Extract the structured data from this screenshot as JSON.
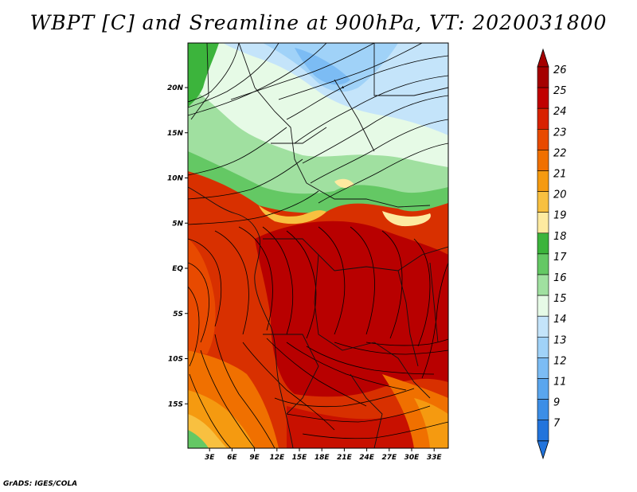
{
  "title": "WBPT [C] and Sreamline at 900hPa, VT: 2020031800",
  "credit": "GrADS: IGES/COLA",
  "map": {
    "lat_labels": [
      {
        "lat": 20,
        "label": "20N"
      },
      {
        "lat": 15,
        "label": "15N"
      },
      {
        "lat": 10,
        "label": "10N"
      },
      {
        "lat": 5,
        "label": "5N"
      },
      {
        "lat": 0,
        "label": "EQ"
      },
      {
        "lat": -5,
        "label": "5S"
      },
      {
        "lat": -10,
        "label": "10S"
      },
      {
        "lat": -15,
        "label": "15S"
      }
    ],
    "lon_labels": [
      {
        "lon": 3,
        "label": "3E"
      },
      {
        "lon": 6,
        "label": "6E"
      },
      {
        "lon": 9,
        "label": "9E"
      },
      {
        "lon": 12,
        "label": "12E"
      },
      {
        "lon": 15,
        "label": "15E"
      },
      {
        "lon": 18,
        "label": "18E"
      },
      {
        "lon": 21,
        "label": "21E"
      },
      {
        "lon": 24,
        "label": "24E"
      },
      {
        "lon": 27,
        "label": "27E"
      },
      {
        "lon": 30,
        "label": "30E"
      },
      {
        "lon": 33,
        "label": "33E"
      }
    ]
  },
  "colorbar": {
    "levels": [
      {
        "label": "26",
        "color": "#a50000"
      },
      {
        "label": "25",
        "color": "#c00000"
      },
      {
        "label": "24",
        "color": "#d82200"
      },
      {
        "label": "23",
        "color": "#e84a00"
      },
      {
        "label": "22",
        "color": "#f07000"
      },
      {
        "label": "21",
        "color": "#f59a10"
      },
      {
        "label": "20",
        "color": "#f8c040"
      },
      {
        "label": "19",
        "color": "#fdeaa0"
      },
      {
        "label": "18",
        "color": "#3cb43c"
      },
      {
        "label": "17",
        "color": "#64c864"
      },
      {
        "label": "16",
        "color": "#a0e0a0"
      },
      {
        "label": "15",
        "color": "#e6fae6"
      },
      {
        "label": "14",
        "color": "#c4e4fa"
      },
      {
        "label": "13",
        "color": "#a0d2f8"
      },
      {
        "label": "12",
        "color": "#7cbcf4"
      },
      {
        "label": "11",
        "color": "#5aa6ee"
      },
      {
        "label": "9",
        "color": "#3c8ee6"
      },
      {
        "label": "7",
        "color": "#2274dc"
      }
    ],
    "top_arrow_color": "#a50000",
    "bottom_arrow_color": "#2274dc"
  }
}
